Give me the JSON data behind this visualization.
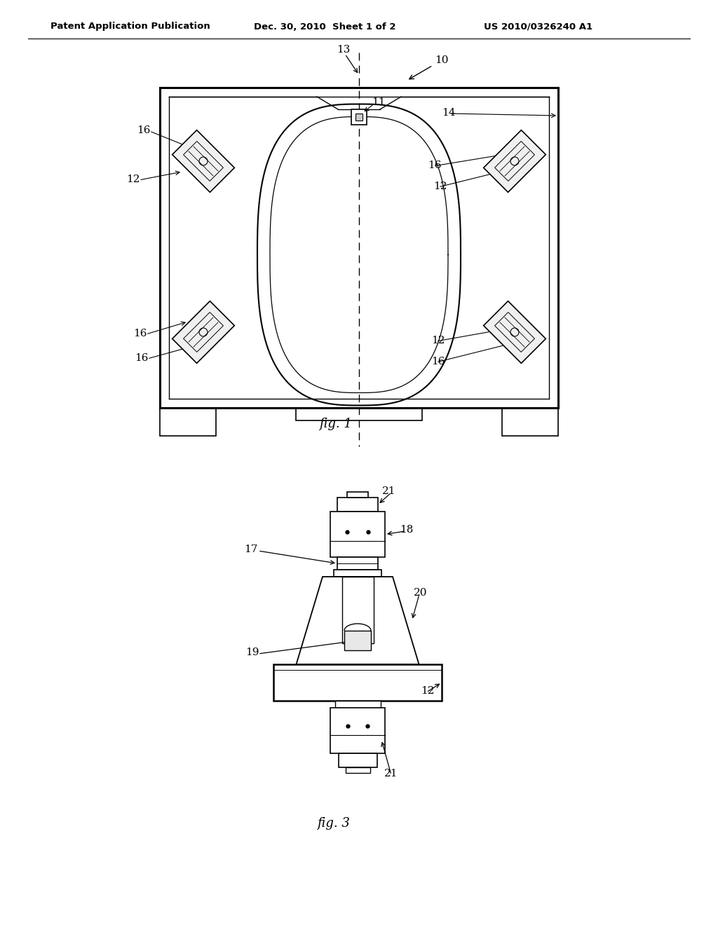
{
  "bg_color": "#ffffff",
  "line_color": "#000000",
  "header_text": "Patent Application Publication",
  "header_date": "Dec. 30, 2010  Sheet 1 of 2",
  "header_patent": "US 2010/0326240 A1",
  "fig1_label": "fig. 1",
  "fig3_label": "fig. 3"
}
